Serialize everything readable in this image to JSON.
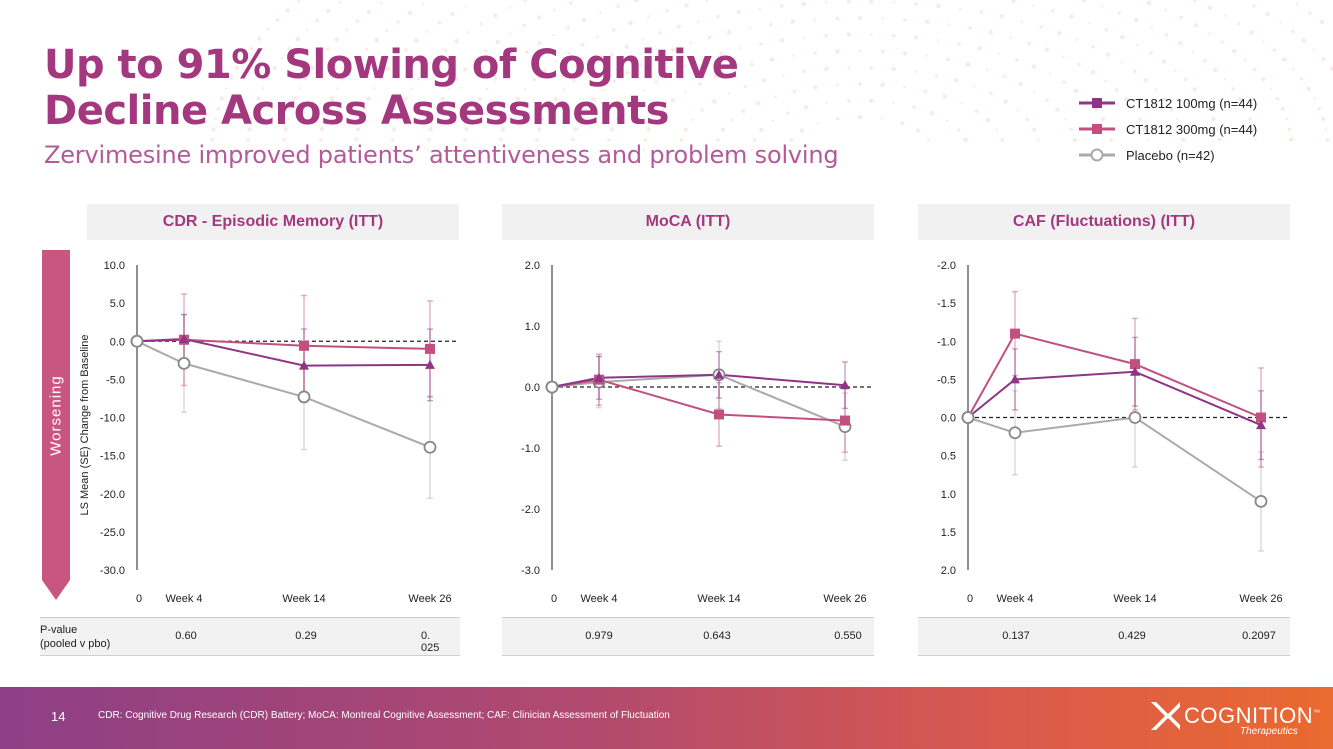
{
  "slide": {
    "title_line1": "Up to 91% Slowing of Cognitive",
    "title_line2": "Decline Across Assessments",
    "subtitle": "Zervimesine improved patients’ attentiveness and problem solving",
    "worsening_label": "Worsening",
    "y_axis_label": "LS Mean (SE) Change from Baseline",
    "page_number": "14",
    "footnote": "CDR: Cognitive Drug Research (CDR) Battery; MoCA: Montreal Cognitive Assessment; CAF: Clinician Assessment of Fluctuation",
    "logo_word": "COGNITION",
    "logo_tm": "™",
    "logo_sub": "Therapeutics",
    "pvalue_label_line1": "P-value",
    "pvalue_label_line2": "(pooled v pbo)"
  },
  "legend": [
    {
      "label": "CT1812 100mg (n=44)",
      "color": "#8e3585",
      "marker": "square"
    },
    {
      "label": "CT1812 300mg (n=44)",
      "color": "#c24f7f",
      "marker": "square"
    },
    {
      "label": "Placebo (n=42)",
      "color": "#aaaaaa",
      "marker": "circle"
    }
  ],
  "colors": {
    "ct100": "#8e3585",
    "ct300": "#c24f7f",
    "placebo": "#aaaaaa",
    "accent": "#a4387e",
    "worsening": "#c9567e"
  },
  "chart_data": [
    {
      "type": "line",
      "title": "CDR - Episodic Memory (ITT)",
      "categories": [
        "0",
        "Week 4",
        "Week 14",
        "Week 26"
      ],
      "ylim": [
        10,
        -30
      ],
      "yticks": [
        "10.0",
        "5.0",
        "0.0",
        "-5.0",
        "-10.0",
        "-15.0",
        "-20.0",
        "-25.0",
        "-30.0"
      ],
      "ytick_values": [
        10,
        5,
        0,
        -5,
        -10,
        -15,
        -20,
        -25,
        -30
      ],
      "series": [
        {
          "name": "CT1812 100mg (n=44)",
          "values": [
            0,
            0.3,
            -3.2,
            -3.1
          ],
          "se": [
            0,
            3.2,
            4.8,
            4.7
          ],
          "marker": "triangle"
        },
        {
          "name": "CT1812 300mg (n=44)",
          "values": [
            0,
            0.2,
            -0.6,
            -1.0
          ],
          "se": [
            0,
            6.0,
            6.6,
            6.3
          ],
          "marker": "square"
        },
        {
          "name": "Placebo (n=42)",
          "values": [
            0,
            -2.9,
            -7.3,
            -13.9
          ],
          "se": [
            0,
            6.4,
            6.9,
            6.7
          ],
          "marker": "circle"
        }
      ],
      "pvalues": [
        "0.60",
        "0.29",
        "0. 025"
      ]
    },
    {
      "type": "line",
      "title": "MoCA (ITT)",
      "categories": [
        "0",
        "Week 4",
        "Week 14",
        "Week 26"
      ],
      "ylim": [
        2,
        -3
      ],
      "yticks": [
        "2.0",
        "1.0",
        "0.0",
        "-1.0",
        "-2.0",
        "-3.0"
      ],
      "ytick_values": [
        2,
        1,
        0,
        -1,
        -2,
        -3
      ],
      "series": [
        {
          "name": "CT1812 100mg (n=44)",
          "values": [
            0,
            0.15,
            0.2,
            0.03
          ],
          "se": [
            0,
            0.35,
            0.38,
            0.38
          ],
          "marker": "triangle"
        },
        {
          "name": "CT1812 300mg (n=44)",
          "values": [
            0,
            0.12,
            -0.45,
            -0.55
          ],
          "se": [
            0,
            0.42,
            0.52,
            0.52
          ],
          "marker": "square"
        },
        {
          "name": "Placebo (n=42)",
          "values": [
            0,
            0.08,
            0.2,
            -0.65
          ],
          "se": [
            0,
            0.42,
            0.55,
            0.55
          ],
          "marker": "circle"
        }
      ],
      "pvalues": [
        "0.979",
        "0.643",
        "0.550"
      ]
    },
    {
      "type": "line",
      "title": "CAF (Fluctuations) (ITT)",
      "categories": [
        "0",
        "Week 4",
        "Week 14",
        "Week 26"
      ],
      "ylim": [
        -2,
        2
      ],
      "yticks": [
        "-2.0",
        "-1.5",
        "-1.0",
        "-0.5",
        "0.0",
        "0.5",
        "1.0",
        "1.5",
        "2.0"
      ],
      "ytick_values": [
        -2,
        -1.5,
        -1,
        -0.5,
        0,
        0.5,
        1,
        1.5,
        2
      ],
      "series": [
        {
          "name": "CT1812 100mg (n=44)",
          "values": [
            0,
            -0.5,
            -0.6,
            0.1
          ],
          "se": [
            0,
            0.4,
            0.45,
            0.45
          ],
          "marker": "triangle"
        },
        {
          "name": "CT1812 300mg (n=44)",
          "values": [
            0,
            -1.1,
            -0.7,
            0.0
          ],
          "se": [
            0,
            0.55,
            0.6,
            0.65
          ],
          "marker": "square"
        },
        {
          "name": "Placebo (n=42)",
          "values": [
            0,
            0.2,
            0.0,
            1.1
          ],
          "se": [
            0,
            0.55,
            0.65,
            0.65
          ],
          "marker": "circle"
        }
      ],
      "pvalues": [
        "0.137",
        "0.429",
        "0.2097"
      ]
    }
  ]
}
